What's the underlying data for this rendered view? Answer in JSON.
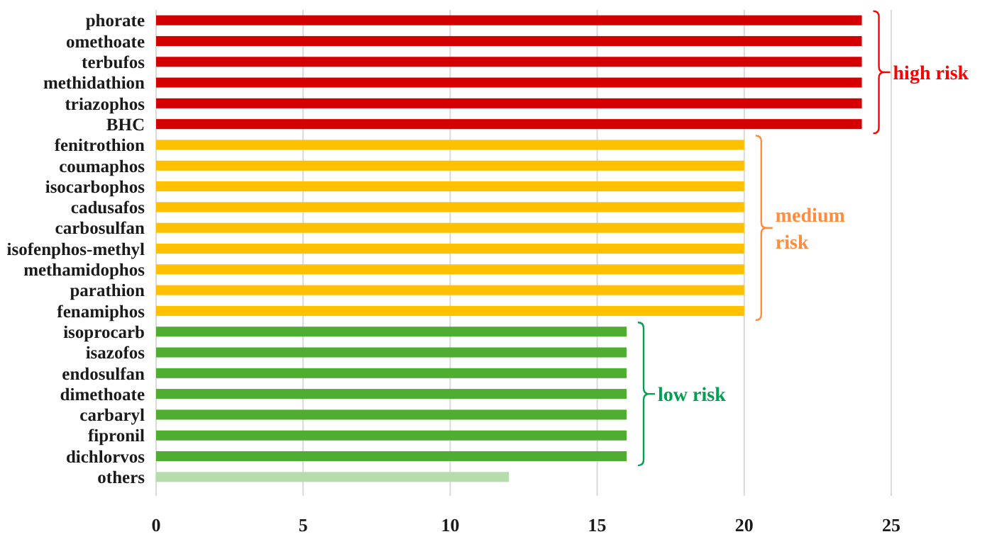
{
  "chart_data": {
    "type": "bar",
    "orientation": "horizontal",
    "categories": [
      "phorate",
      "omethoate",
      "terbufos",
      "methidathion",
      "triazophos",
      "BHC",
      "fenitrothion",
      "coumaphos",
      "isocarbophos",
      "cadusafos",
      "carbosulfan",
      "isofenphos-methyl",
      "methamidophos",
      "parathion",
      "fenamiphos",
      "isoprocarb",
      "isazofos",
      "endosulfan",
      "dimethoate",
      "carbaryl",
      "fipronil",
      "dichlorvos",
      "others"
    ],
    "series": [
      {
        "name": "high risk",
        "color": "#d40000",
        "values": [
          24,
          24,
          24,
          24,
          24,
          24,
          null,
          null,
          null,
          null,
          null,
          null,
          null,
          null,
          null,
          null,
          null,
          null,
          null,
          null,
          null,
          null,
          null
        ]
      },
      {
        "name": "medium risk",
        "color": "#ffc000",
        "values": [
          null,
          null,
          null,
          null,
          null,
          null,
          20,
          20,
          20,
          20,
          20,
          20,
          20,
          20,
          20,
          null,
          null,
          null,
          null,
          null,
          null,
          null,
          null
        ]
      },
      {
        "name": "low risk",
        "color": "#4fae32",
        "values": [
          null,
          null,
          null,
          null,
          null,
          null,
          null,
          null,
          null,
          null,
          null,
          null,
          null,
          null,
          null,
          16,
          16,
          16,
          16,
          16,
          16,
          16,
          null
        ]
      },
      {
        "color": "#b5dcaa",
        "values": [
          null,
          null,
          null,
          null,
          null,
          null,
          null,
          null,
          null,
          null,
          null,
          null,
          null,
          null,
          null,
          null,
          null,
          null,
          null,
          null,
          null,
          null,
          12
        ]
      }
    ],
    "xlim": [
      0,
      25
    ],
    "xticks": [
      0,
      5,
      10,
      15,
      20,
      25
    ],
    "grid": "x"
  }
}
